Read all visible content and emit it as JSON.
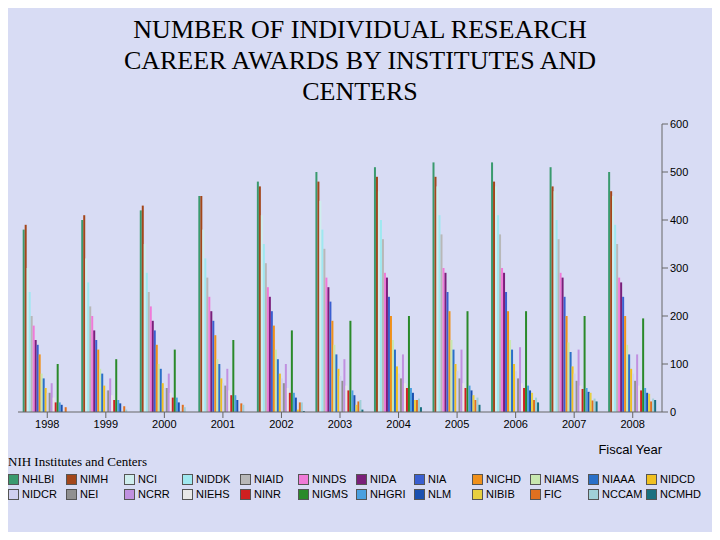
{
  "chart_data": {
    "type": "bar",
    "title": "NUMBER OF INDIVIDUAL RESEARCH CAREER AWARDS BY INSTITUTES AND CENTERS",
    "x_label": "Fiscal Year",
    "legend_title": "NIH Institutes and Centers",
    "legend": "bottom",
    "grid": false,
    "stacked": false,
    "categories": [
      "1998",
      "1999",
      "2000",
      "2001",
      "2002",
      "2003",
      "2004",
      "2005",
      "2006",
      "2007",
      "2008"
    ],
    "ylim": [
      0,
      600
    ],
    "yticks": [
      0,
      100,
      200,
      300,
      400,
      500,
      600
    ],
    "series": [
      {
        "name": "NHLBI",
        "color": "#3a9a6e",
        "values": [
          380,
          400,
          420,
          450,
          480,
          500,
          510,
          520,
          520,
          510,
          500
        ]
      },
      {
        "name": "NIMH",
        "color": "#a3461a",
        "values": [
          390,
          410,
          430,
          450,
          470,
          480,
          490,
          490,
          480,
          470,
          460
        ]
      },
      {
        "name": "NCI",
        "color": "#cfeeee",
        "values": [
          300,
          320,
          350,
          380,
          410,
          440,
          460,
          470,
          470,
          460,
          450
        ]
      },
      {
        "name": "NIDDK",
        "color": "#9fe8f0",
        "values": [
          250,
          270,
          290,
          320,
          350,
          380,
          400,
          410,
          410,
          400,
          390
        ]
      },
      {
        "name": "NIAID",
        "color": "#b8b8b8",
        "values": [
          200,
          220,
          250,
          280,
          310,
          340,
          360,
          370,
          370,
          360,
          350
        ]
      },
      {
        "name": "NINDS",
        "color": "#f07ad8",
        "values": [
          180,
          200,
          220,
          240,
          260,
          280,
          290,
          300,
          300,
          290,
          280
        ]
      },
      {
        "name": "NIDA",
        "color": "#7a1f7a",
        "values": [
          150,
          170,
          190,
          210,
          240,
          260,
          280,
          290,
          290,
          280,
          270
        ]
      },
      {
        "name": "NIA",
        "color": "#3a5fd0",
        "values": [
          140,
          150,
          170,
          190,
          210,
          230,
          240,
          250,
          250,
          240,
          240
        ]
      },
      {
        "name": "NICHD",
        "color": "#f0901a",
        "values": [
          120,
          130,
          140,
          160,
          180,
          190,
          200,
          210,
          210,
          200,
          200
        ]
      },
      {
        "name": "NIAMS",
        "color": "#c8e8b0",
        "values": [
          80,
          90,
          100,
          110,
          130,
          140,
          150,
          150,
          150,
          145,
          140
        ]
      },
      {
        "name": "NIAAA",
        "color": "#2a70c8",
        "values": [
          70,
          80,
          90,
          100,
          110,
          120,
          130,
          130,
          130,
          125,
          120
        ]
      },
      {
        "name": "NIDCD",
        "color": "#f0c020",
        "values": [
          50,
          55,
          60,
          70,
          80,
          90,
          95,
          100,
          100,
          95,
          90
        ]
      },
      {
        "name": "NIDCR",
        "color": "#d0d0f0",
        "values": [
          40,
          45,
          50,
          60,
          70,
          75,
          80,
          85,
          85,
          80,
          80
        ]
      },
      {
        "name": "NEI",
        "color": "#909090",
        "values": [
          40,
          45,
          50,
          55,
          60,
          65,
          70,
          70,
          70,
          65,
          65
        ]
      },
      {
        "name": "NCRR",
        "color": "#c090e0",
        "values": [
          60,
          70,
          80,
          90,
          100,
          110,
          120,
          130,
          135,
          130,
          120
        ]
      },
      {
        "name": "NIEHS",
        "color": "#e8e8e8",
        "values": [
          30,
          35,
          40,
          45,
          50,
          55,
          60,
          60,
          60,
          55,
          55
        ]
      },
      {
        "name": "NINR",
        "color": "#d02020",
        "values": [
          20,
          25,
          30,
          35,
          40,
          45,
          50,
          50,
          50,
          48,
          45
        ]
      },
      {
        "name": "NIGMS",
        "color": "#2a8a2a",
        "values": [
          100,
          110,
          130,
          150,
          170,
          190,
          200,
          210,
          210,
          200,
          195
        ]
      },
      {
        "name": "NHGRI",
        "color": "#4aa0e0",
        "values": [
          20,
          25,
          30,
          35,
          40,
          45,
          50,
          55,
          55,
          50,
          50
        ]
      },
      {
        "name": "NLM",
        "color": "#1a50b0",
        "values": [
          15,
          18,
          20,
          25,
          30,
          35,
          40,
          45,
          45,
          42,
          40
        ]
      },
      {
        "name": "NIBIB",
        "color": "#e8d040",
        "values": [
          0,
          0,
          0,
          0,
          5,
          15,
          25,
          35,
          40,
          40,
          38
        ]
      },
      {
        "name": "FIC",
        "color": "#e07020",
        "values": [
          10,
          12,
          15,
          18,
          20,
          22,
          25,
          25,
          25,
          24,
          22
        ]
      },
      {
        "name": "NCCAM",
        "color": "#a0d0d8",
        "values": [
          0,
          5,
          10,
          15,
          20,
          25,
          28,
          30,
          30,
          28,
          28
        ]
      },
      {
        "name": "NCMHD",
        "color": "#1a7080",
        "values": [
          0,
          0,
          0,
          0,
          2,
          5,
          10,
          15,
          20,
          22,
          25
        ]
      }
    ]
  }
}
